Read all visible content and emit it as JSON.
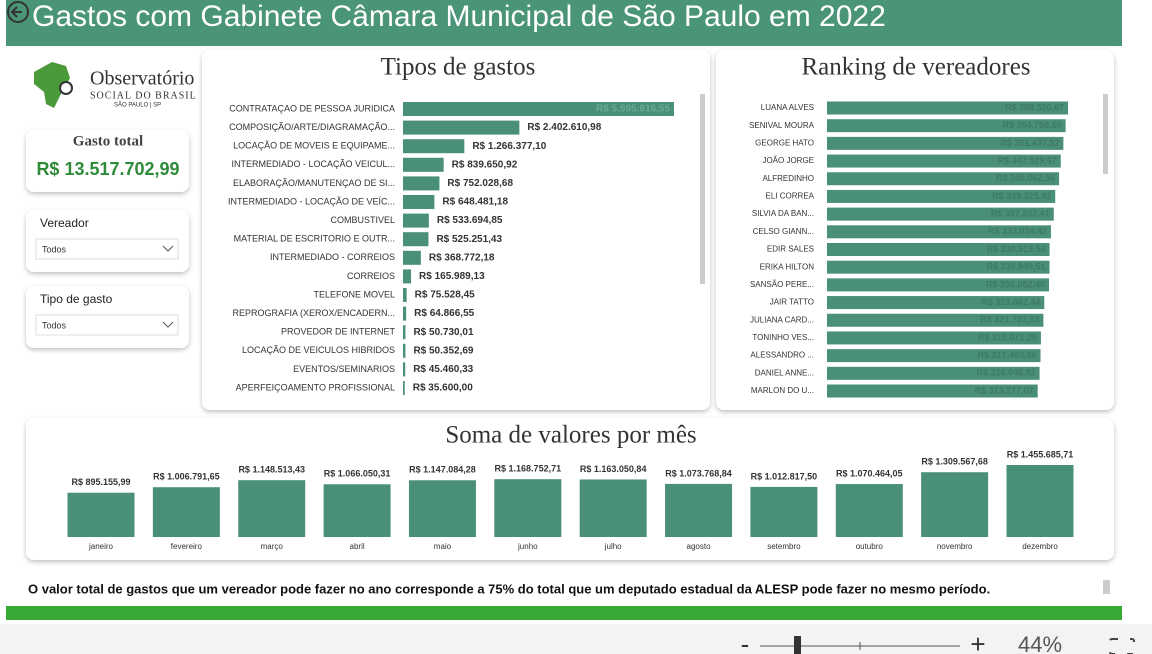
{
  "header": {
    "title": "Gastos com Gabinete Câmara Municipal de São Paulo em 2022"
  },
  "logo": {
    "name": "Observatório",
    "sub": "SOCIAL DO BRASIL",
    "place": "SÃO PAULO | SP"
  },
  "card": {
    "label": "Gasto total",
    "value": "R$ 13.517.702,99"
  },
  "filters": [
    {
      "label": "Vereador",
      "selected": "Todos"
    },
    {
      "label": "Tipo de gasto",
      "selected": "Todos"
    }
  ],
  "chart_data": [
    {
      "type": "bar",
      "orientation": "horizontal",
      "title": "Tipos de gastos",
      "color": "#4a8f78",
      "categories": [
        "CONTRATAÇAO DE PESSOA JURIDICA",
        "COMPOSIÇÃO/ARTE/DIAGRAMAÇÃO...",
        "LOCAÇÃO DE MOVEIS E EQUIPAME...",
        "INTERMEDIADO - LOCAÇÃO VEICUL...",
        "ELABORAÇÃO/MANUTENÇAO DE SI...",
        "INTERMEDIADO - LOCAÇÃO DE VEÍC...",
        "COMBUSTIVEL",
        "MATERIAL DE ESCRITORIO E OUTR...",
        "INTERMEDIADO - CORREIOS",
        "CORREIOS",
        "TELEFONE MOVEL",
        "REPROGRAFIA (XEROX/ENCADERN...",
        "PROVEDOR DE INTERNET",
        "LOCAÇÃO DE VEICULOS HIBRIDOS",
        "EVENTOS/SEMINARIOS",
        "APERFEIÇOAMENTO PROFISSIONAL"
      ],
      "values": [
        5595616.55,
        2402610.98,
        1266377.1,
        839650.92,
        752028.68,
        648481.18,
        533694.85,
        525251.43,
        368772.18,
        165989.13,
        75528.45,
        64866.55,
        50730.01,
        50352.69,
        45460.33,
        35600.0
      ],
      "value_labels": [
        "R$ 5.595.616,55",
        "R$ 2.402.610,98",
        "R$ 1.266.377,10",
        "R$ 839.650,92",
        "R$ 752.028,68",
        "R$ 648.481,18",
        "R$ 533.694,85",
        "R$ 525.251,43",
        "R$ 368.772,18",
        "R$ 165.989,13",
        "R$ 75.528,45",
        "R$ 64.866,55",
        "R$ 50.730,01",
        "R$ 50.352,69",
        "R$ 45.460,33",
        "R$ 35.600,00"
      ]
    },
    {
      "type": "bar",
      "orientation": "horizontal",
      "title": "Ranking de vereadores",
      "color": "#4a8f78",
      "categories": [
        "LUANA ALVES",
        "SENIVAL MOURA",
        "GEORGE HATO",
        "JOÃO JORGE",
        "ALFREDINHO",
        "ELI CORREA",
        "SILVIA DA BAN...",
        "CELSO GIANN...",
        "EDIR SALES",
        "ERIKA HILTON",
        "SANSÃO PERE...",
        "JAIR TATTO",
        "JULIANA CARD...",
        "TONINHO VES...",
        "ALESSANDRO ...",
        "DANIEL ANNE...",
        "MARLON DO U..."
      ],
      "values": [
        358320.67,
        354758.6,
        351437.52,
        347529.67,
        345062.56,
        339325.92,
        337207.41,
        333034.42,
        330919.54,
        330849.51,
        330052.4,
        323042.44,
        321707.83,
        318071.28,
        317463.9,
        316048.82,
        313277.07
      ],
      "value_labels": [
        "R$ 358.320,67",
        "R$ 354.758,60",
        "R$ 351.437,52",
        "R$ 347.529,67",
        "R$ 345.062,56",
        "R$ 339.325,92",
        "R$ 337.207,41",
        "R$ 333.034,42",
        "R$ 330.919,54",
        "R$ 330.849,51",
        "R$ 330.052,40",
        "R$ 323.042,44",
        "R$ 321.707,83",
        "R$ 318.071,28",
        "R$ 317.463,90",
        "R$ 316.048,82",
        "R$ 313.277,07"
      ]
    },
    {
      "type": "bar",
      "orientation": "vertical",
      "title": "Soma de valores por mês",
      "color": "#4a8f78",
      "categories": [
        "janeiro",
        "fevereiro",
        "março",
        "abril",
        "maio",
        "junho",
        "julho",
        "agosto",
        "setembro",
        "outubro",
        "novembro",
        "dezembro"
      ],
      "values": [
        895155.99,
        1006791.65,
        1148513.43,
        1066050.31,
        1147084.28,
        1168752.71,
        1163050.84,
        1073768.84,
        1012817.5,
        1070464.05,
        1309567.68,
        1455685.71
      ],
      "value_labels": [
        "R$ 895.155,99",
        "R$ 1.006.791,65",
        "R$ 1.148.513,43",
        "R$ 1.066.050,31",
        "R$ 1.147.084,28",
        "R$ 1.168.752,71",
        "R$ 1.163.050,84",
        "R$ 1.073.768,84",
        "R$ 1.012.817,50",
        "R$ 1.070.464,05",
        "R$ 1.309.567,68",
        "R$ 1.455.685,71"
      ]
    }
  ],
  "note": "O valor total de gastos que um vereador pode fazer no ano corresponde a 75% do total que um deputado estadual da ALESP pode fazer no mesmo período.",
  "zoom": {
    "minus": "-",
    "plus": "+",
    "level": "44%"
  }
}
